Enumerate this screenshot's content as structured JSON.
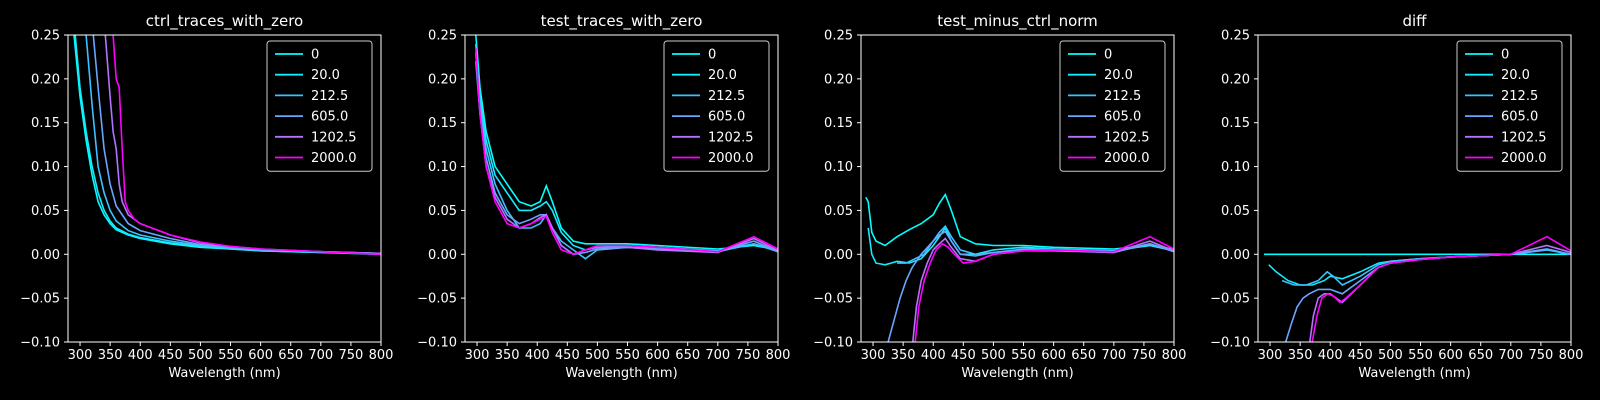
{
  "figure": {
    "background": "#000000",
    "foreground": "#ffffff"
  },
  "series_colors": [
    "#00ffff",
    "#15eaff",
    "#3dc2ff",
    "#68a6ff",
    "#b373ff",
    "#ff00ff"
  ],
  "chart_data": [
    {
      "type": "line",
      "title": "ctrl_traces_with_zero",
      "xlabel": "Wavelength (nm)",
      "ylabel": "",
      "xlim": [
        280,
        800
      ],
      "ylim": [
        -0.1,
        0.25
      ],
      "xticks": [
        "300",
        "350",
        "400",
        "450",
        "500",
        "550",
        "600",
        "650",
        "700",
        "750",
        "800"
      ],
      "yticks": [
        "−0.10",
        "−0.05",
        "0.00",
        "0.05",
        "0.10",
        "0.15",
        "0.20",
        "0.25"
      ],
      "legend": "top-right",
      "series": [
        {
          "name": "0",
          "x": [
            290,
            300,
            310,
            320,
            330,
            340,
            350,
            360,
            380,
            400,
            450,
            500,
            550,
            600,
            700,
            800
          ],
          "values": [
            0.25,
            0.18,
            0.13,
            0.09,
            0.06,
            0.045,
            0.035,
            0.028,
            0.022,
            0.018,
            0.012,
            0.008,
            0.006,
            0.004,
            0.002,
            0.0
          ]
        },
        {
          "name": "20.0",
          "x": [
            292,
            300,
            310,
            320,
            330,
            340,
            350,
            360,
            380,
            400,
            450,
            500,
            550,
            600,
            700,
            800
          ],
          "values": [
            0.25,
            0.19,
            0.14,
            0.1,
            0.07,
            0.05,
            0.038,
            0.03,
            0.023,
            0.019,
            0.013,
            0.009,
            0.006,
            0.004,
            0.002,
            0.001
          ]
        },
        {
          "name": "212.5",
          "x": [
            310,
            320,
            330,
            340,
            350,
            360,
            380,
            400,
            450,
            500,
            550,
            600,
            700,
            800
          ],
          "values": [
            0.25,
            0.17,
            0.1,
            0.07,
            0.05,
            0.038,
            0.027,
            0.022,
            0.015,
            0.01,
            0.007,
            0.005,
            0.003,
            0.001
          ]
        },
        {
          "name": "605.0",
          "x": [
            322,
            330,
            340,
            350,
            360,
            380,
            400,
            450,
            500,
            550,
            600,
            700,
            800
          ],
          "values": [
            0.25,
            0.19,
            0.12,
            0.08,
            0.055,
            0.035,
            0.027,
            0.018,
            0.011,
            0.008,
            0.005,
            0.003,
            0.001
          ]
        },
        {
          "name": "1202.5",
          "x": [
            342,
            350,
            355,
            360,
            365,
            370,
            380,
            400,
            450,
            500,
            550,
            600,
            700,
            800
          ],
          "values": [
            0.25,
            0.18,
            0.14,
            0.12,
            0.08,
            0.06,
            0.045,
            0.035,
            0.022,
            0.013,
            0.009,
            0.006,
            0.003,
            0.001
          ]
        },
        {
          "name": "2000.0",
          "x": [
            355,
            360,
            365,
            370,
            375,
            380,
            390,
            400,
            450,
            500,
            550,
            600,
            700,
            800
          ],
          "values": [
            0.25,
            0.2,
            0.19,
            0.12,
            0.06,
            0.05,
            0.04,
            0.035,
            0.022,
            0.014,
            0.009,
            0.006,
            0.003,
            0.0
          ]
        }
      ]
    },
    {
      "type": "line",
      "title": "test_traces_with_zero",
      "xlabel": "Wavelength (nm)",
      "ylabel": "",
      "xlim": [
        280,
        800
      ],
      "ylim": [
        -0.1,
        0.25
      ],
      "xticks": [
        "300",
        "350",
        "400",
        "450",
        "500",
        "550",
        "600",
        "650",
        "700",
        "750",
        "800"
      ],
      "yticks": [
        "−0.10",
        "−0.05",
        "0.00",
        "0.05",
        "0.10",
        "0.15",
        "0.20",
        "0.25"
      ],
      "legend": "top-right",
      "series": [
        {
          "name": "0",
          "x": [
            298,
            305,
            315,
            330,
            350,
            370,
            390,
            405,
            415,
            425,
            440,
            460,
            480,
            500,
            550,
            600,
            700,
            760,
            800
          ],
          "values": [
            0.25,
            0.19,
            0.14,
            0.1,
            0.08,
            0.06,
            0.055,
            0.06,
            0.078,
            0.06,
            0.03,
            0.015,
            0.012,
            0.012,
            0.012,
            0.01,
            0.006,
            0.01,
            0.005
          ]
        },
        {
          "name": "20.0",
          "x": [
            298,
            305,
            315,
            330,
            350,
            370,
            390,
            405,
            415,
            425,
            440,
            460,
            480,
            500,
            550,
            600,
            700,
            760,
            800
          ],
          "values": [
            0.24,
            0.18,
            0.13,
            0.09,
            0.07,
            0.05,
            0.05,
            0.055,
            0.06,
            0.05,
            0.025,
            0.01,
            0.005,
            0.008,
            0.01,
            0.008,
            0.004,
            0.012,
            0.004
          ]
        },
        {
          "name": "212.5",
          "x": [
            298,
            305,
            315,
            330,
            350,
            370,
            390,
            405,
            415,
            425,
            440,
            460,
            480,
            500,
            550,
            600,
            700,
            760,
            800
          ],
          "values": [
            0.23,
            0.17,
            0.12,
            0.08,
            0.05,
            0.03,
            0.03,
            0.035,
            0.045,
            0.03,
            0.015,
            0.005,
            -0.005,
            0.005,
            0.008,
            0.006,
            0.003,
            0.012,
            0.003
          ]
        },
        {
          "name": "605.0",
          "x": [
            298,
            305,
            315,
            330,
            350,
            370,
            390,
            405,
            415,
            425,
            440,
            460,
            480,
            500,
            550,
            600,
            700,
            760,
            800
          ],
          "values": [
            0.22,
            0.16,
            0.11,
            0.07,
            0.045,
            0.035,
            0.04,
            0.045,
            0.045,
            0.03,
            0.01,
            0.0,
            0.002,
            0.006,
            0.008,
            0.006,
            0.003,
            0.015,
            0.003
          ]
        },
        {
          "name": "1202.5",
          "x": [
            298,
            305,
            315,
            330,
            350,
            370,
            390,
            405,
            415,
            425,
            440,
            460,
            480,
            500,
            550,
            600,
            700,
            760,
            800
          ],
          "values": [
            0.23,
            0.16,
            0.1,
            0.065,
            0.04,
            0.03,
            0.035,
            0.042,
            0.045,
            0.03,
            0.01,
            0.0,
            0.005,
            0.008,
            0.008,
            0.005,
            0.002,
            0.018,
            0.004
          ]
        },
        {
          "name": "2000.0",
          "x": [
            298,
            305,
            315,
            330,
            350,
            370,
            390,
            405,
            415,
            425,
            440,
            460,
            480,
            500,
            550,
            600,
            700,
            760,
            800
          ],
          "values": [
            0.235,
            0.16,
            0.1,
            0.06,
            0.035,
            0.03,
            0.035,
            0.04,
            0.043,
            0.025,
            0.005,
            0.0,
            0.005,
            0.01,
            0.01,
            0.008,
            0.003,
            0.02,
            0.006
          ]
        }
      ]
    },
    {
      "type": "line",
      "title": "test_minus_ctrl_norm",
      "xlabel": "Wavelength (nm)",
      "ylabel": "",
      "xlim": [
        280,
        800
      ],
      "ylim": [
        -0.1,
        0.25
      ],
      "xticks": [
        "300",
        "350",
        "400",
        "450",
        "500",
        "550",
        "600",
        "650",
        "700",
        "750",
        "800"
      ],
      "yticks": [
        "−0.10",
        "−0.05",
        "0.00",
        "0.05",
        "0.10",
        "0.15",
        "0.20",
        "0.25"
      ],
      "legend": "top-right",
      "series": [
        {
          "name": "0",
          "x": [
            288,
            292,
            298,
            305,
            320,
            340,
            360,
            380,
            400,
            410,
            420,
            430,
            445,
            470,
            500,
            550,
            600,
            700,
            760,
            800
          ],
          "values": [
            0.065,
            0.06,
            0.025,
            0.015,
            0.01,
            0.02,
            0.028,
            0.035,
            0.045,
            0.058,
            0.068,
            0.05,
            0.02,
            0.012,
            0.01,
            0.01,
            0.008,
            0.006,
            0.01,
            0.006
          ]
        },
        {
          "name": "20.0",
          "x": [
            292,
            298,
            305,
            320,
            340,
            360,
            380,
            400,
            410,
            420,
            430,
            445,
            470,
            500,
            550,
            600,
            700,
            760,
            800
          ],
          "values": [
            0.03,
            0.0,
            -0.01,
            -0.012,
            -0.008,
            -0.01,
            -0.005,
            0.01,
            0.02,
            0.03,
            0.015,
            0.0,
            0.0,
            0.005,
            0.008,
            0.006,
            0.004,
            0.01,
            0.004
          ]
        },
        {
          "name": "212.5",
          "x": [
            340,
            355,
            370,
            385,
            400,
            410,
            420,
            430,
            445,
            470,
            500,
            550,
            600,
            700,
            760,
            800
          ],
          "values": [
            -0.01,
            -0.01,
            -0.005,
            0.0,
            0.015,
            0.025,
            0.032,
            0.02,
            0.005,
            0.0,
            0.002,
            0.006,
            0.006,
            0.003,
            0.012,
            0.004
          ]
        },
        {
          "name": "605.0",
          "x": [
            325,
            335,
            345,
            355,
            365,
            380,
            400,
            410,
            420,
            430,
            445,
            470,
            500,
            550,
            600,
            700,
            760,
            800
          ],
          "values": [
            -0.1,
            -0.075,
            -0.05,
            -0.03,
            -0.015,
            0.0,
            0.015,
            0.022,
            0.026,
            0.015,
            0.0,
            -0.002,
            0.002,
            0.005,
            0.005,
            0.002,
            0.012,
            0.003
          ]
        },
        {
          "name": "1202.5",
          "x": [
            366,
            372,
            380,
            390,
            400,
            410,
            420,
            430,
            445,
            470,
            500,
            550,
            600,
            700,
            760,
            800
          ],
          "values": [
            -0.1,
            -0.06,
            -0.03,
            -0.01,
            0.005,
            0.012,
            0.018,
            0.008,
            -0.005,
            -0.008,
            0.0,
            0.004,
            0.004,
            0.002,
            0.015,
            0.004
          ]
        },
        {
          "name": "2000.0",
          "x": [
            370,
            376,
            385,
            395,
            405,
            415,
            425,
            435,
            450,
            470,
            500,
            550,
            600,
            700,
            760,
            800
          ],
          "values": [
            -0.1,
            -0.06,
            -0.03,
            -0.01,
            0.005,
            0.012,
            0.008,
            0.0,
            -0.01,
            -0.008,
            0.0,
            0.004,
            0.005,
            0.003,
            0.02,
            0.006
          ]
        }
      ]
    },
    {
      "type": "line",
      "title": "diff",
      "xlabel": "Wavelength (nm)",
      "ylabel": "",
      "xlim": [
        280,
        800
      ],
      "ylim": [
        -0.1,
        0.25
      ],
      "xticks": [
        "300",
        "350",
        "400",
        "450",
        "500",
        "550",
        "600",
        "650",
        "700",
        "750",
        "800"
      ],
      "yticks": [
        "−0.10",
        "−0.05",
        "0.00",
        "0.05",
        "0.10",
        "0.15",
        "0.20",
        "0.25"
      ],
      "legend": "top-right",
      "series": [
        {
          "name": "0",
          "x": [
            290,
            800
          ],
          "values": [
            0.0,
            0.0
          ]
        },
        {
          "name": "20.0",
          "x": [
            298,
            310,
            330,
            350,
            370,
            390,
            400,
            420,
            450,
            480,
            500,
            550,
            600,
            700,
            760,
            800
          ],
          "values": [
            -0.012,
            -0.02,
            -0.03,
            -0.035,
            -0.035,
            -0.03,
            -0.025,
            -0.028,
            -0.02,
            -0.01,
            -0.008,
            -0.005,
            -0.003,
            0.0,
            0.005,
            0.0
          ]
        },
        {
          "name": "212.5",
          "x": [
            320,
            340,
            360,
            380,
            395,
            405,
            420,
            450,
            480,
            500,
            550,
            600,
            700,
            760,
            800
          ],
          "values": [
            -0.03,
            -0.035,
            -0.035,
            -0.03,
            -0.02,
            -0.025,
            -0.035,
            -0.025,
            -0.012,
            -0.008,
            -0.005,
            -0.003,
            0.0,
            0.005,
            0.0
          ]
        },
        {
          "name": "605.0",
          "x": [
            326,
            335,
            345,
            355,
            365,
            380,
            400,
            420,
            450,
            480,
            500,
            550,
            600,
            700,
            760,
            800
          ],
          "values": [
            -0.1,
            -0.08,
            -0.06,
            -0.05,
            -0.045,
            -0.04,
            -0.04,
            -0.045,
            -0.03,
            -0.015,
            -0.01,
            -0.006,
            -0.003,
            0.0,
            0.006,
            0.0
          ]
        },
        {
          "name": "1202.5",
          "x": [
            366,
            372,
            380,
            390,
            400,
            410,
            420,
            450,
            480,
            500,
            550,
            600,
            700,
            760,
            800
          ],
          "values": [
            -0.1,
            -0.07,
            -0.05,
            -0.045,
            -0.045,
            -0.05,
            -0.055,
            -0.035,
            -0.015,
            -0.01,
            -0.006,
            -0.003,
            0.0,
            0.01,
            0.002
          ]
        },
        {
          "name": "2000.0",
          "x": [
            370,
            378,
            386,
            396,
            406,
            416,
            426,
            450,
            480,
            500,
            550,
            600,
            700,
            760,
            800
          ],
          "values": [
            -0.1,
            -0.07,
            -0.05,
            -0.045,
            -0.048,
            -0.055,
            -0.05,
            -0.035,
            -0.015,
            -0.01,
            -0.006,
            -0.003,
            0.0,
            0.02,
            0.004
          ]
        }
      ]
    }
  ]
}
